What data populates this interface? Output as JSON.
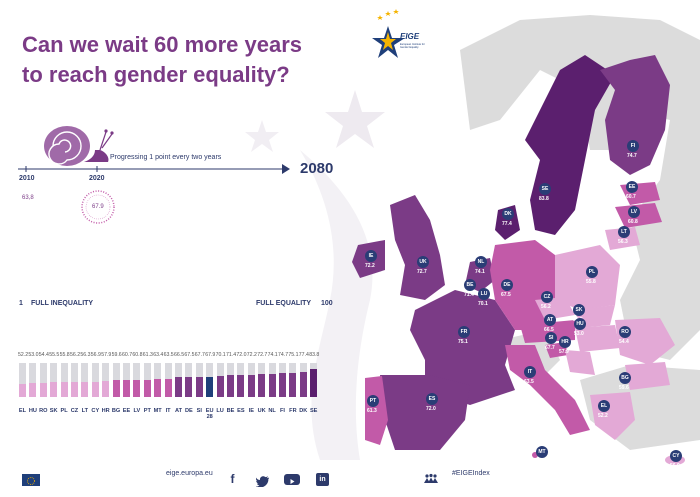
{
  "title": {
    "line1": "Can we wait 60 more years",
    "line2": "to reach gender equality?"
  },
  "logo": {
    "name": "EIGE",
    "subtitle": "European Institute for Gender Equality"
  },
  "timeline": {
    "start_year": "2010",
    "start_score": "63,8",
    "mid_year": "2020",
    "mid_score": "67.9",
    "progress_text": "Progressing 1 point every two years",
    "end_year": "2080"
  },
  "scale": {
    "left_num": "1",
    "left_label": "FULL INEQUALITY",
    "right_label": "FULL EQUALITY",
    "right_num": "100"
  },
  "chart_data": {
    "type": "bar",
    "categories": [
      "EL",
      "HU",
      "RO",
      "SK",
      "PL",
      "CZ",
      "LT",
      "CY",
      "HR",
      "BG",
      "EE",
      "LV",
      "PT",
      "MT",
      "IT",
      "AT",
      "DE",
      "SI",
      "EU 28",
      "LU",
      "BE",
      "ES",
      "IE",
      "UK",
      "NL",
      "FI",
      "FR",
      "DK",
      "SE"
    ],
    "values": [
      52.2,
      53.0,
      54.4,
      55.5,
      55.8,
      56.2,
      56.3,
      56.9,
      57.9,
      59.6,
      60.7,
      60.8,
      61.3,
      63.4,
      63.5,
      66.5,
      67.5,
      67.7,
      67.9,
      70.1,
      71.4,
      72.0,
      72.2,
      72.7,
      74.1,
      74.7,
      75.1,
      77.4,
      83.8
    ],
    "value_labels": [
      "52.2",
      "53.0",
      "54.4",
      "55.5",
      "55.8",
      "56.2",
      "56.3",
      "56.9",
      "57.9",
      "59.6",
      "60.7",
      "60.8",
      "61.3",
      "63.4",
      "63.5",
      "66.5",
      "67.5",
      "67.7",
      "67.9",
      "70.1",
      "71.4",
      "72.0",
      "72.2",
      "72.7",
      "74.1",
      "74.7",
      "75.1",
      "77.4",
      "83.8"
    ],
    "ylim": [
      0,
      100
    ],
    "highlight": "EU 28",
    "colors": {
      "background": "#d9d9de",
      "light": "#e3a9d6",
      "mid": "#c25aa8",
      "dark": "#7b3b86",
      "darkest": "#5b1f6e",
      "eu": "#1f3f7a"
    }
  },
  "map": {
    "labels": [
      {
        "code": "FI",
        "value": "74.7"
      },
      {
        "code": "SE",
        "value": "83.8"
      },
      {
        "code": "EE",
        "value": "60.7"
      },
      {
        "code": "LV",
        "value": "60.8"
      },
      {
        "code": "LT",
        "value": "56.3"
      },
      {
        "code": "DK",
        "value": "77.4"
      },
      {
        "code": "IE",
        "value": "72.2"
      },
      {
        "code": "UK",
        "value": "72.7"
      },
      {
        "code": "NL",
        "value": "74.1"
      },
      {
        "code": "BE",
        "value": "71.4"
      },
      {
        "code": "LU",
        "value": "70.1"
      },
      {
        "code": "DE",
        "value": "67.5"
      },
      {
        "code": "PL",
        "value": "55.8"
      },
      {
        "code": "CZ",
        "value": "56.2"
      },
      {
        "code": "SK",
        "value": "55.5"
      },
      {
        "code": "AT",
        "value": "66.5"
      },
      {
        "code": "HU",
        "value": "53.0"
      },
      {
        "code": "RO",
        "value": "54.4"
      },
      {
        "code": "SI",
        "value": "67.7"
      },
      {
        "code": "HR",
        "value": "57.9"
      },
      {
        "code": "FR",
        "value": "75.1"
      },
      {
        "code": "BG",
        "value": "59.6"
      },
      {
        "code": "IT",
        "value": "63.5"
      },
      {
        "code": "EL",
        "value": "52.2"
      },
      {
        "code": "PT",
        "value": "61.3"
      },
      {
        "code": "ES",
        "value": "72.0"
      },
      {
        "code": "MT",
        "value": "63.4"
      },
      {
        "code": "CY",
        "value": "56.9"
      }
    ]
  },
  "footer": {
    "website": "eige.europa.eu",
    "hashtag": "#EIGEIndex",
    "social": [
      "f-icon",
      "twitter-icon",
      "youtube-icon",
      "linkedin-icon"
    ]
  }
}
